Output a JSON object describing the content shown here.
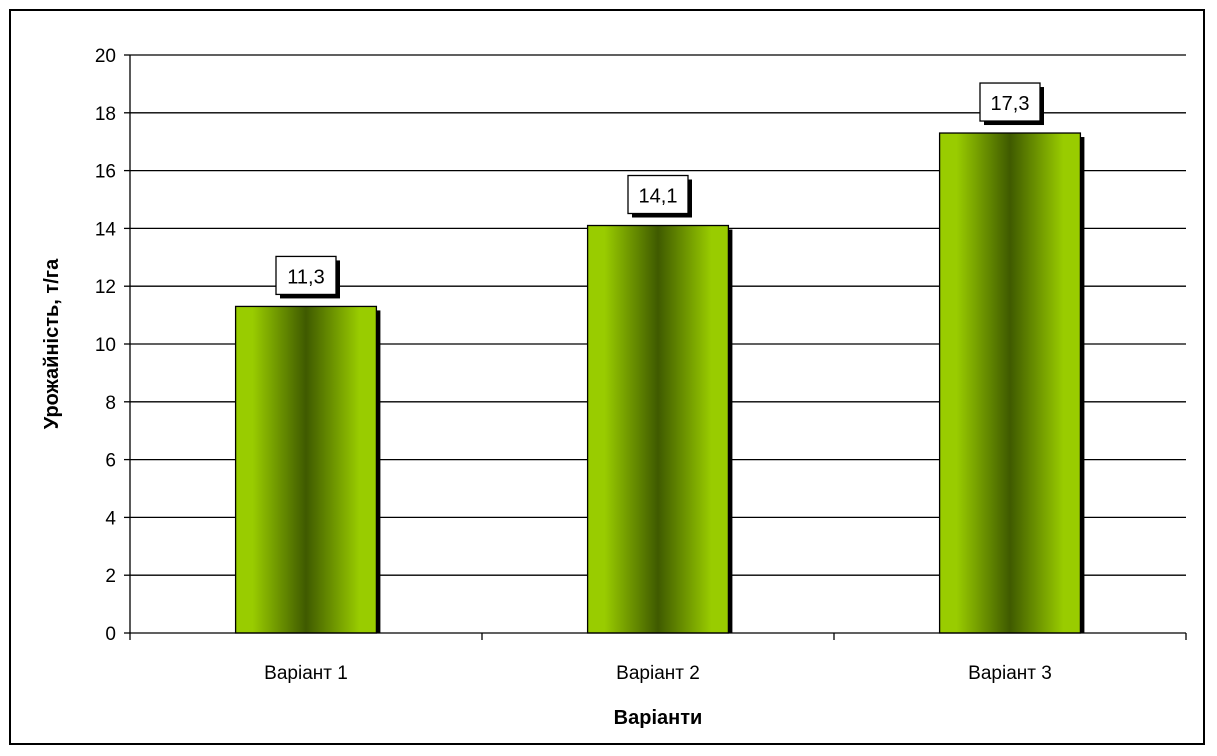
{
  "chart_data": {
    "type": "bar",
    "categories": [
      "Варіант 1",
      "Варіант 2",
      "Варіант 3"
    ],
    "values": [
      11.3,
      14.1,
      17.3
    ],
    "data_labels": [
      "11,3",
      "14,1",
      "17,3"
    ],
    "xlabel": "Варіанти",
    "ylabel": "Урожайність, т/га",
    "ylim": [
      0,
      20
    ],
    "yticks": [
      0,
      2,
      4,
      6,
      8,
      10,
      12,
      14,
      16,
      18,
      20
    ],
    "grid": true,
    "legend": "none",
    "colors": {
      "bar_light": "#99cc00",
      "bar_dark": "#3f5a00",
      "grid": "#000000"
    }
  }
}
